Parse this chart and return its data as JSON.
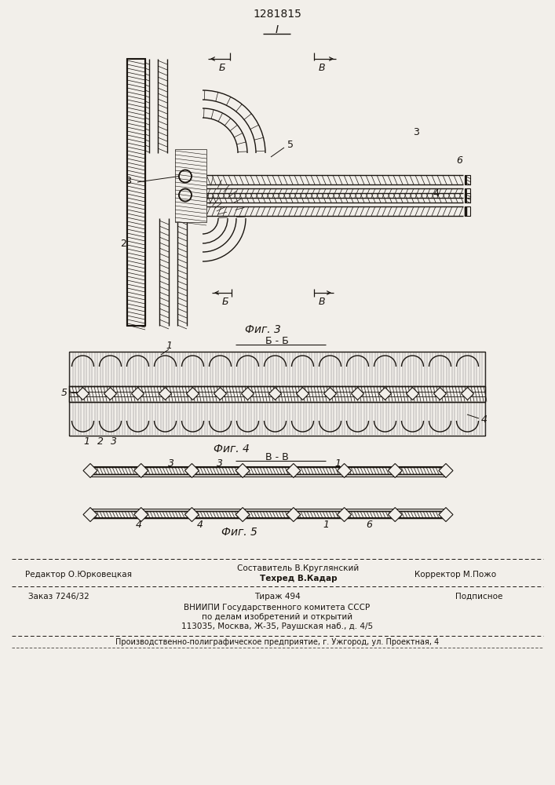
{
  "patent_number": "1281815",
  "fig3_label": "Фиг. 3",
  "fig4_label": "Фиг. 4",
  "fig5_label": "Фиг. 5",
  "section_bb": "Б - Б",
  "section_vv": "В - В",
  "bg_color": "#f2efea",
  "line_color": "#1a1510",
  "footer_editor": "Редактор О.Юрковецкая",
  "footer_composer": "Составитель В.Круглянский",
  "footer_tech": "Техред В.Кадар",
  "footer_corrector": "Корректор М.Пожо",
  "footer_order": "Заказ 7246/32",
  "footer_tirazh": "Тираж 494",
  "footer_podpisnoe": "Подписное",
  "footer_vniipи": "ВНИИПИ Государственного комитета СССР",
  "footer_dela": "по делам изобретений и открытий",
  "footer_address": "113035, Москва, Ж-35, Раушская наб., д. 4/5",
  "footer_production": "Производственно-полиграфическое предприятие, г. Ужгород, ул. Проектная, 4"
}
